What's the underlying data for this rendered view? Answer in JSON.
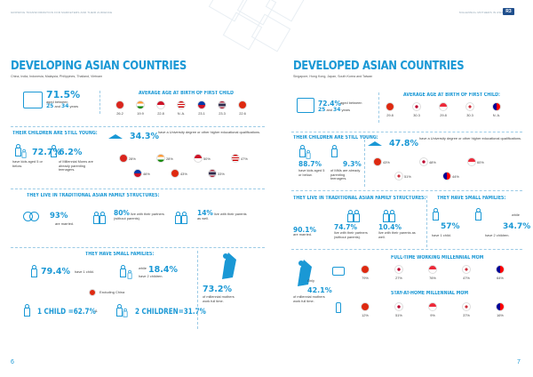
{
  "left": {
    "header": "GROWING TRANSFORMATION FOR MARKETERS AND THEIR AUDIENCE",
    "title": "DEVELOPING ASIAN COUNTRIES",
    "countries": "China, India, Indonesia, Malaysia, Philippines, Thailand, Vietnam",
    "aged_pct": "71.5%",
    "aged_line1": "aged between",
    "aged_from": "25",
    "aged_and": "and",
    "aged_to": "34",
    "aged_years": "years",
    "avg_age_title": "AVERAGE AGE AT BIRTH OF FIRST CHILD",
    "avg_ages": [
      {
        "flag": "vietnam",
        "value": "26.2"
      },
      {
        "flag": "india",
        "value": "19.9"
      },
      {
        "flag": "indonesia",
        "value": "22.8"
      },
      {
        "flag": "malaysia",
        "value": "N. A."
      },
      {
        "flag": "philippines",
        "value": "23.1"
      },
      {
        "flag": "thailand",
        "value": "23.3"
      },
      {
        "flag": "china",
        "value": "22.6"
      }
    ],
    "young_title": "THEIR CHILDREN ARE STILL YOUNG:",
    "kids5_pct": "72.7%",
    "kids5_text": "have kids aged 5 or below.",
    "teen_pct": "6.2%",
    "teen_text": "of Millennial Moms are already parenting teenagers.",
    "uni_pct": "34.3%",
    "uni_text": "have a University degree or other higher educational qualifications.",
    "uni_flags": [
      {
        "flag": "vietnam",
        "value": "28%"
      },
      {
        "flag": "india",
        "value": "28%"
      },
      {
        "flag": "indonesia",
        "value": "50%"
      },
      {
        "flag": "malaysia",
        "value": "47%"
      },
      {
        "flag": "philippines",
        "value": "46%"
      },
      {
        "flag": "china",
        "value": "43%"
      },
      {
        "flag": "thailand",
        "value": "33%"
      }
    ],
    "trad_title": "THEY LIVE IN TRADITIONAL ASIAN FAMILY STRUCTURES:",
    "married_pct": "93%",
    "married_text": "are married.",
    "partners_pct": "80%",
    "partners_text": "live with their partners (without parents).",
    "parents_pct": "14%",
    "parents_text": "live with their parents as well.",
    "small_title": "THEY HAVE SMALL FAMILIES:",
    "one_child_pct": "79.4%",
    "one_child_text": "have 1 child.",
    "while": "while",
    "two_child_pct": "18.4%",
    "two_child_text": "have 2 children.",
    "excl_china": "Excluding China",
    "one_child_eq": "1 CHILD =62.7%",
    "amp": "&",
    "two_children_eq": "2 CHILDREN=31.7%",
    "work_pct": "73.2%",
    "work_text": "of millennial mothers work full time.",
    "page_num": "6"
  },
  "right": {
    "header": "MILLENNIAL MOTHERS IN ASIA",
    "title": "DEVELOPED ASIAN COUNTRIES",
    "countries": "Singapore, Hong Kong, Japan, South Korea and Taiwan",
    "aged_pct": "72.4%",
    "aged_line1": "aged between",
    "aged_from": "25",
    "aged_and": "and",
    "aged_to": "34",
    "aged_years": "years",
    "avg_age_title": "AVERAGE AGE AT BIRTH OF FIRST CHILD:",
    "avg_ages": [
      {
        "flag": "hongkong",
        "value": "29.8"
      },
      {
        "flag": "japan",
        "value": "30.3"
      },
      {
        "flag": "singapore",
        "value": "29.8"
      },
      {
        "flag": "southkorea",
        "value": "30.3"
      },
      {
        "flag": "taiwan",
        "value": "N. A."
      }
    ],
    "young_title": "THEIR CHILDREN ARE STILL YOUNG:",
    "kids5_pct": "88.7%",
    "kids5_text": "have kids aged 5 or below.",
    "teen_pct": "9.3%",
    "teen_text": "of MMs are already parenting teenagers.",
    "uni_pct": "47.8%",
    "uni_text": "have a University degree or other higher educational qualifications.",
    "uni_flags": [
      {
        "flag": "hongkong",
        "value": "43%"
      },
      {
        "flag": "japan",
        "value": "48%"
      },
      {
        "flag": "singapore",
        "value": "60%"
      },
      {
        "flag": "southkorea",
        "value": "51%"
      },
      {
        "flag": "taiwan",
        "value": "44%"
      }
    ],
    "trad_title": "THEY LIVE IN TRADITIONAL ASIAN FAMILY STRUCTURES:",
    "married_pct": "90.1%",
    "married_text": "are married.",
    "partners_pct": "74.7%",
    "partners_text": "live with their partners (without parents).",
    "parents_pct": "10.4%",
    "parents_text": "live with their parents as well.",
    "small_title": "THEY HAVE SMALL FAMILIES:",
    "one_child_pct": "57%",
    "one_child_text": "have 1 child.",
    "while": "while",
    "two_child_pct": "34.7%",
    "two_child_text": "have 2 children.",
    "only": "Only",
    "work_pct": "42.1%",
    "work_text": "of millennial mothers work full time.",
    "fulltime_title": "FULL-TIME  WORKING MILLENNIAL MOM",
    "fulltime": [
      {
        "flag": "hongkong",
        "value": "79%"
      },
      {
        "flag": "japan",
        "value": "27%"
      },
      {
        "flag": "singapore",
        "value": "76%"
      },
      {
        "flag": "southkorea",
        "value": "47%"
      },
      {
        "flag": "taiwan",
        "value": "64%"
      }
    ],
    "sah_title": "STAY-AT-HOME MILLENNIAL MOM",
    "stayhome": [
      {
        "flag": "hongkong",
        "value": "12%"
      },
      {
        "flag": "japan",
        "value": "51%"
      },
      {
        "flag": "singapore",
        "value": "9%"
      },
      {
        "flag": "southkorea",
        "value": "37%"
      },
      {
        "flag": "taiwan",
        "value": "16%"
      }
    ],
    "page_num": "7"
  }
}
